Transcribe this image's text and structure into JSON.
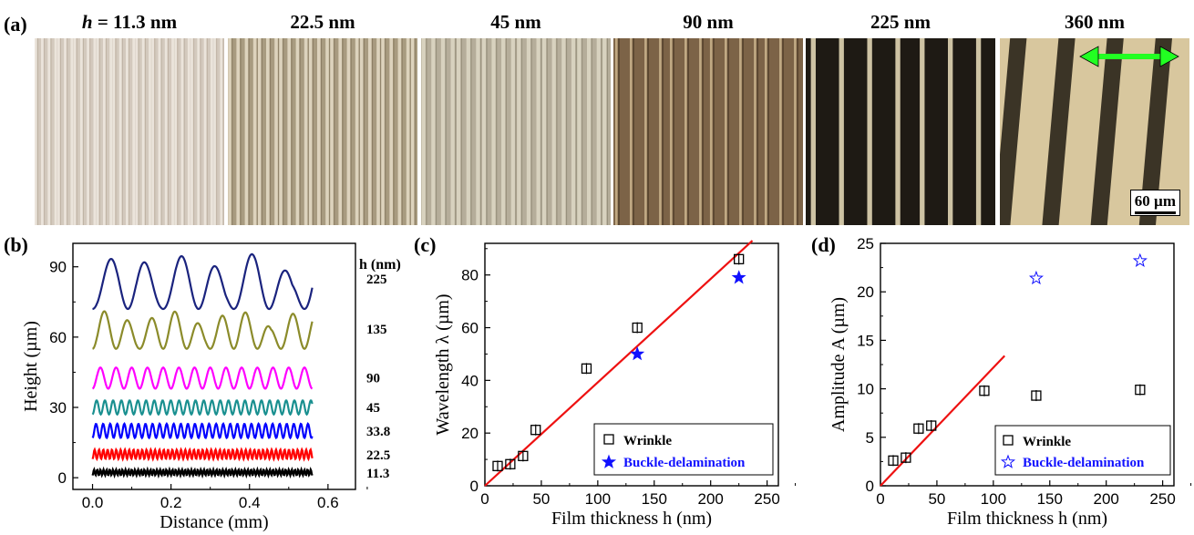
{
  "panel_a": {
    "label": "(a)",
    "images": [
      {
        "title_prefix": "h",
        "title": " = 11.3 nm",
        "bg": "#d3c9bd",
        "stripe": "#efe9e0",
        "dark": "#b0a393"
      },
      {
        "title_prefix": "",
        "title": "22.5 nm",
        "bg": "#a89b80",
        "stripe": "#e6ddc8",
        "dark": "#7d6f55"
      },
      {
        "title_prefix": "",
        "title": "45 nm",
        "bg": "#b5ad9a",
        "stripe": "#ded8c6",
        "dark": "#8c8470"
      },
      {
        "title_prefix": "",
        "title": "90 nm",
        "bg": "#7c6347",
        "stripe": "#cdb58e",
        "dark": "#4c3a27"
      },
      {
        "title_prefix": "",
        "title": "225 nm",
        "bg": "#1e1a14",
        "stripe": "#ede2bd",
        "dark": "#0c0a08"
      },
      {
        "title_prefix": "",
        "title": "360 nm",
        "bg": "#d8c79e",
        "stripe": "#2a2318",
        "dark": "#111"
      }
    ],
    "scale_bar": "60 µm",
    "arrow_color": "#22ff22"
  },
  "chart_data": [
    {
      "panel": "(b)",
      "type": "line",
      "xlabel": "Distance (mm)",
      "ylabel": "Height (µm)",
      "xlim": [
        -0.05,
        0.67
      ],
      "ylim": [
        -5,
        100
      ],
      "xticks": [
        "0.0",
        "0.2",
        "0.4",
        "0.6"
      ],
      "yticks": [
        "0",
        "30",
        "60",
        "90"
      ],
      "legend_title": "h (nm)",
      "series": [
        {
          "name": "225",
          "color": "#1a237e",
          "baseline": 72,
          "amplitude": 24,
          "period": 0.09
        },
        {
          "name": "135",
          "color": "#8b8b2a",
          "baseline": 55,
          "amplitude": 16,
          "period": 0.06
        },
        {
          "name": "90",
          "color": "#ff00ff",
          "baseline": 38,
          "amplitude": 9,
          "period": 0.04
        },
        {
          "name": "45",
          "color": "#1a9090",
          "baseline": 27,
          "amplitude": 6,
          "period": 0.021
        },
        {
          "name": "33.8",
          "color": "#0000ff",
          "baseline": 17,
          "amplitude": 6,
          "period": 0.018
        },
        {
          "name": "22.5",
          "color": "#ff0000",
          "baseline": 8,
          "amplitude": 4,
          "period": 0.011
        },
        {
          "name": "11.3",
          "color": "#000000",
          "baseline": 1,
          "amplitude": 2.5,
          "period": 0.008
        }
      ]
    },
    {
      "panel": "(c)",
      "type": "scatter",
      "xlabel": "Film thickness h (nm)",
      "ylabel": "Wavelength λ (µm)",
      "xlim": [
        0,
        260
      ],
      "ylim": [
        0,
        92
      ],
      "xticks": [
        0,
        50,
        100,
        150,
        200,
        250
      ],
      "yticks": [
        0,
        20,
        40,
        60,
        80
      ],
      "series": [
        {
          "name": "Wrinkle",
          "marker": "open-square",
          "color": "#000000",
          "x": [
            11.3,
            22.5,
            33.8,
            45,
            90,
            135,
            225
          ],
          "y": [
            7.5,
            8.2,
            11.3,
            21.2,
            44.5,
            60.0,
            86.0
          ]
        },
        {
          "name": "Buckle-delamination",
          "marker": "filled-star",
          "color": "#1010ff",
          "x": [
            135,
            225
          ],
          "y": [
            50.0,
            79.0
          ]
        }
      ],
      "fit_line": {
        "color": "#ee1111",
        "x": [
          0,
          237
        ],
        "y": [
          0,
          93
        ]
      }
    },
    {
      "panel": "(d)",
      "type": "scatter",
      "xlabel": "Film thickness h (nm)",
      "ylabel": "Amplitude A (µm)",
      "xlim": [
        0,
        260
      ],
      "ylim": [
        0,
        25
      ],
      "xticks": [
        0,
        50,
        100,
        150,
        200,
        250
      ],
      "yticks": [
        0,
        5,
        10,
        15,
        20,
        25
      ],
      "series": [
        {
          "name": "Wrinkle",
          "marker": "open-square",
          "color": "#000000",
          "x": [
            11.3,
            22.5,
            33.8,
            45,
            92,
            138,
            230
          ],
          "y": [
            2.6,
            2.9,
            5.9,
            6.2,
            9.8,
            9.3,
            9.9
          ]
        },
        {
          "name": "Buckle-delamination",
          "marker": "open-star",
          "color": "#1010ff",
          "x": [
            138,
            230
          ],
          "y": [
            21.4,
            23.2
          ]
        }
      ],
      "fit_line": {
        "color": "#ee1111",
        "x": [
          0,
          110
        ],
        "y": [
          0,
          13.4
        ]
      }
    }
  ]
}
